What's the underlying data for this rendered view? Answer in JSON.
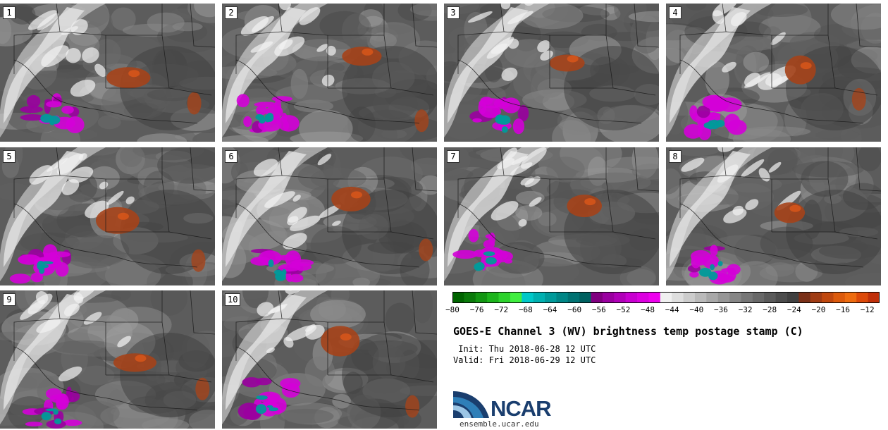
{
  "panels": [
    {
      "label": "1"
    },
    {
      "label": "2"
    },
    {
      "label": "3"
    },
    {
      "label": "4"
    },
    {
      "label": "5"
    },
    {
      "label": "6"
    },
    {
      "label": "7"
    },
    {
      "label": "8"
    },
    {
      "label": "9"
    },
    {
      "label": "10"
    }
  ],
  "colorbar": {
    "min": -80,
    "max": -10,
    "colors": [
      "#006400",
      "#0a7a0a",
      "#129612",
      "#1cb41c",
      "#2cd22c",
      "#40ee40",
      "#00c8c8",
      "#00b0b0",
      "#009a9a",
      "#008686",
      "#007272",
      "#006060",
      "#800080",
      "#9a00a0",
      "#b000b8",
      "#c800d0",
      "#dc00e0",
      "#ee00ee",
      "#f0f0f0",
      "#dedede",
      "#cccccc",
      "#bababa",
      "#a8a8a8",
      "#969696",
      "#868686",
      "#767676",
      "#686868",
      "#5a5a5a",
      "#4c4c4c",
      "#404040",
      "#7a3018",
      "#a03c14",
      "#c0480e",
      "#dc5a0c",
      "#ee6c10",
      "#dd4a0a",
      "#c0300a"
    ],
    "tick_labels": [
      "−80",
      "−76",
      "−72",
      "−68",
      "−64",
      "−60",
      "−56",
      "−52",
      "−48",
      "−44",
      "−40",
      "−36",
      "−32",
      "−28",
      "−24",
      "−20",
      "−16",
      "−12"
    ],
    "tick_values": [
      -80,
      -76,
      -72,
      -68,
      -64,
      -60,
      -56,
      -52,
      -48,
      -44,
      -40,
      -36,
      -32,
      -28,
      -24,
      -20,
      -16,
      -12
    ]
  },
  "title": "GOES-E Channel 3 (WV) brightness temp postage stamp (C)",
  "init": " Init: Thu 2018-06-28 12 UTC",
  "valid": "Valid: Fri 2018-06-29 12 UTC",
  "logo": {
    "text": "NCAR",
    "site": "ensemble.ucar.edu"
  }
}
